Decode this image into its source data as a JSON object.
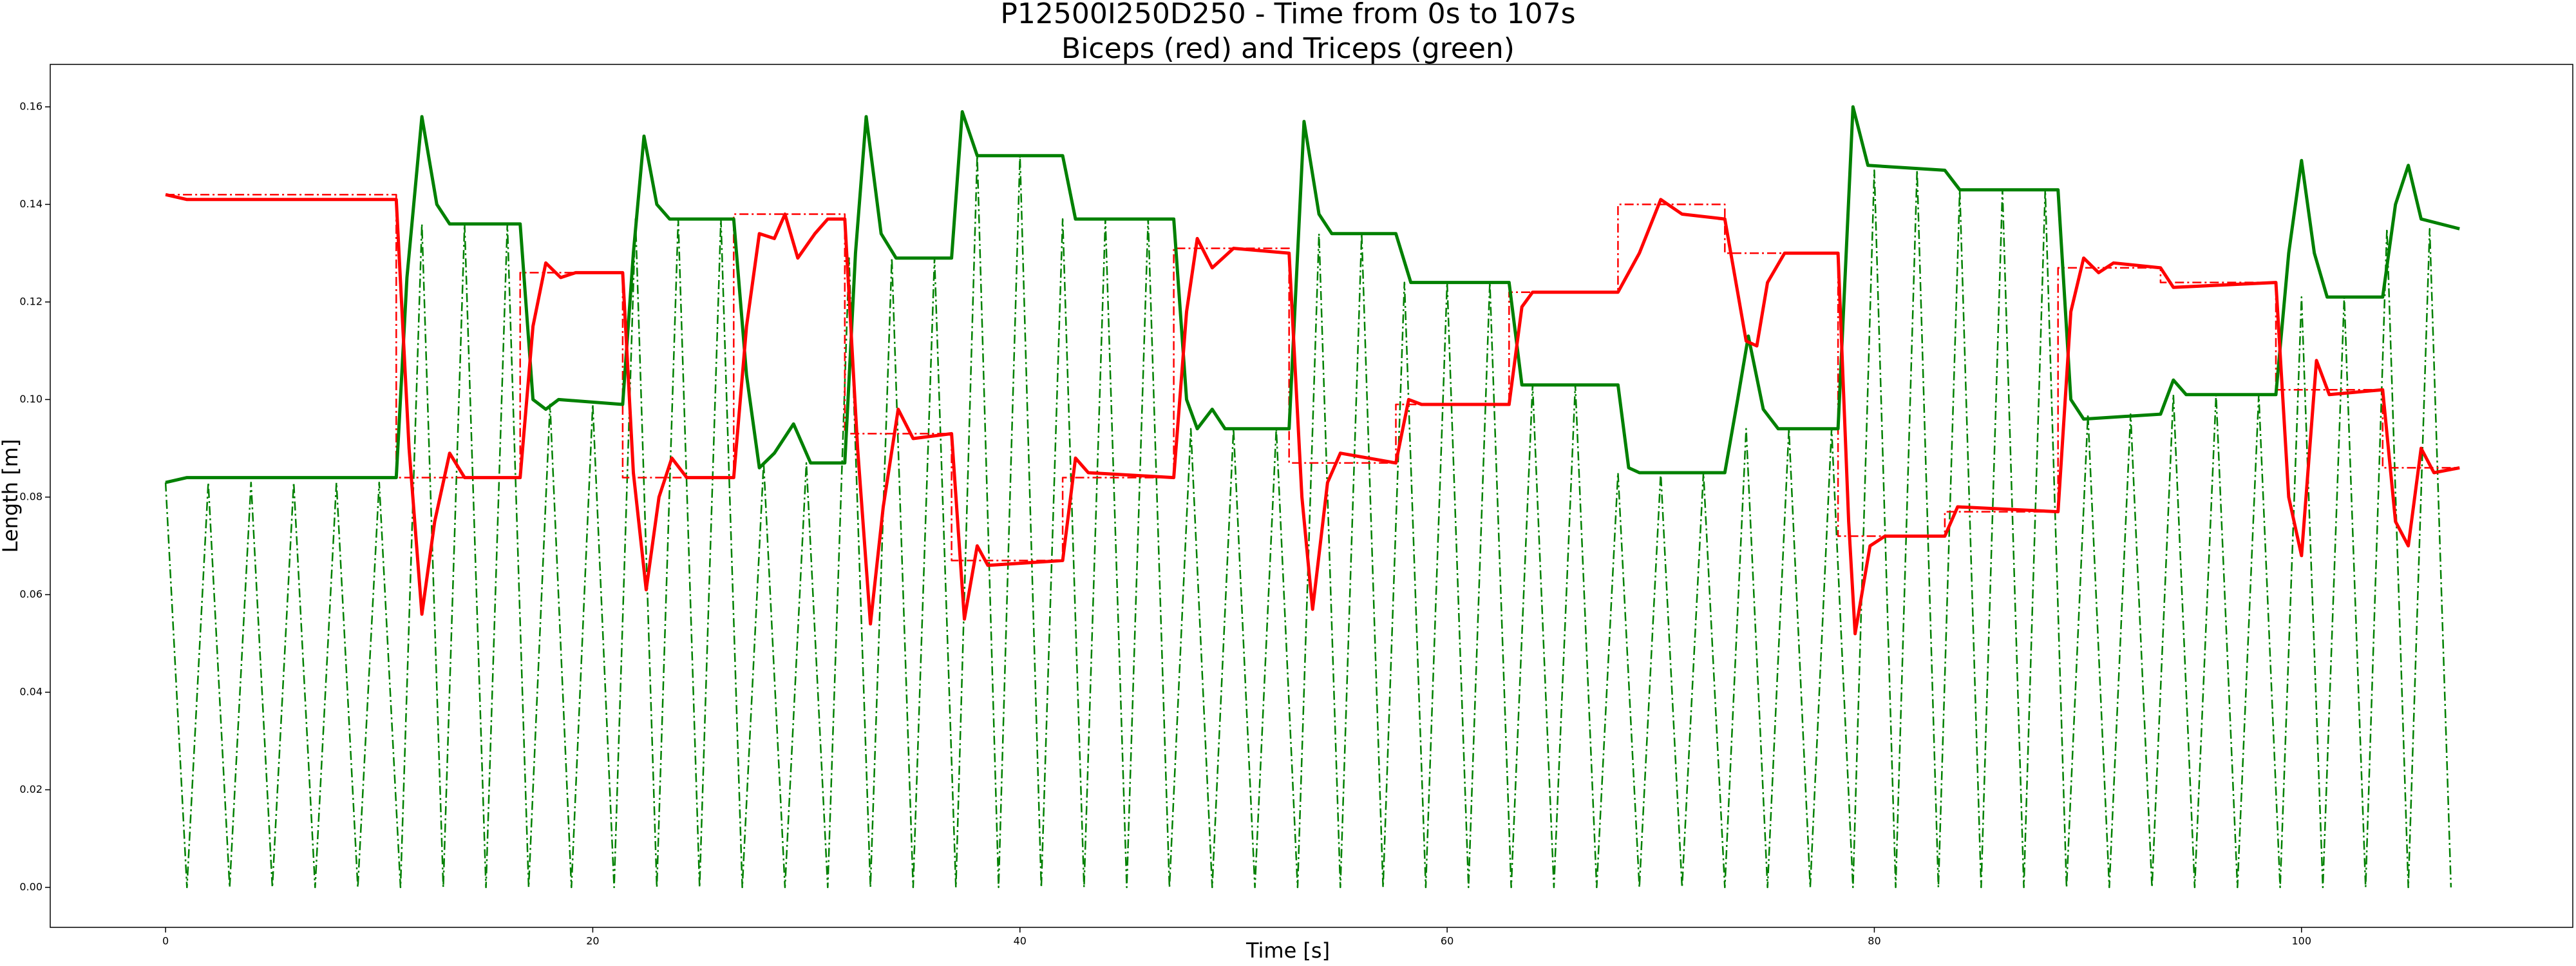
{
  "chart_data": {
    "type": "line",
    "title": "P12500I250D250 - Time from 0s to 107s",
    "subtitle": "Biceps (red) and Triceps (green)",
    "x_label": "Time [s]",
    "y_label": "Length [m]",
    "xlim": [
      -5.4,
      112.7
    ],
    "ylim": [
      -0.0082,
      0.1687
    ],
    "xticks": [
      0,
      20,
      40,
      60,
      80,
      100
    ],
    "yticks": [
      {
        "value": 0,
        "label": "0.00"
      },
      {
        "value": 0.02,
        "label": "0.02"
      },
      {
        "value": 0.04,
        "label": "0.04"
      },
      {
        "value": 0.06,
        "label": "0.06"
      },
      {
        "value": 0.08,
        "label": "0.08"
      },
      {
        "value": 0.1,
        "label": "0.10"
      },
      {
        "value": 0.12,
        "label": "0.12"
      },
      {
        "value": 0.14,
        "label": "0.14"
      },
      {
        "value": 0.16,
        "label": "0.16"
      }
    ],
    "grid": false,
    "series": [
      {
        "color": "#008000",
        "style": "dashdot",
        "width": 2.5,
        "x": [
          0,
          1,
          2,
          3,
          4,
          5,
          6,
          7,
          8,
          9,
          10,
          11,
          12,
          13,
          14,
          15,
          16,
          17,
          18,
          19,
          20,
          21,
          22,
          23,
          24,
          25,
          26,
          27,
          28,
          29,
          30,
          31,
          32,
          33,
          34,
          35,
          36,
          37,
          38,
          39,
          40,
          41,
          42,
          43,
          44,
          45,
          46,
          47,
          48,
          49,
          50,
          51,
          52,
          53,
          54,
          55,
          56,
          57,
          58,
          59,
          60,
          61,
          62,
          63,
          64,
          65,
          66,
          67,
          68,
          69,
          70,
          71,
          72,
          73,
          74,
          75,
          76,
          77,
          78,
          79,
          80,
          81,
          82,
          83,
          84,
          85,
          86,
          87,
          88,
          89,
          90,
          91,
          92,
          93,
          94,
          95,
          96,
          97,
          98,
          99,
          100,
          101,
          102,
          103,
          104,
          105,
          106,
          107
        ],
        "values": [
          0.083,
          0,
          0.083,
          0,
          0.083,
          0,
          0.083,
          0,
          0.083,
          0,
          0.083,
          0,
          0.136,
          0,
          0.136,
          0,
          0.136,
          0,
          0.099,
          0,
          0.099,
          0,
          0.137,
          0,
          0.137,
          0,
          0.137,
          0,
          0.087,
          0,
          0.087,
          0,
          0.129,
          0,
          0.129,
          0,
          0.129,
          0,
          0.15,
          0,
          0.15,
          0,
          0.137,
          0,
          0.137,
          0,
          0.137,
          0,
          0.094,
          0,
          0.094,
          0,
          0.094,
          0,
          0.134,
          0,
          0.134,
          0,
          0.124,
          0,
          0.124,
          0,
          0.124,
          0,
          0.103,
          0,
          0.103,
          0,
          0.085,
          0,
          0.085,
          0,
          0.085,
          0,
          0.094,
          0,
          0.094,
          0,
          0.094,
          0,
          0.147,
          0,
          0.147,
          0,
          0.143,
          0,
          0.143,
          0,
          0.143,
          0,
          0.097,
          0,
          0.097,
          0,
          0.101,
          0,
          0.101,
          0,
          0.101,
          0,
          0.121,
          0,
          0.121,
          0,
          0.135,
          0,
          0.135,
          0
        ]
      },
      {
        "color": "#ff0000",
        "style": "dashdot",
        "width": 2.5,
        "x": [
          0,
          10.8,
          10.8,
          16.6,
          16.6,
          21.4,
          21.4,
          26.6,
          26.6,
          31.8,
          31.8,
          36.8,
          36.8,
          42,
          42,
          47.2,
          47.2,
          52.6,
          52.6,
          57.6,
          57.6,
          62.9,
          62.9,
          68,
          68,
          73,
          73,
          78.3,
          78.3,
          83.3,
          83.3,
          88.6,
          88.6,
          93.4,
          93.4,
          98.8,
          98.8,
          103.8,
          103.8,
          107.4
        ],
        "values": [
          0.142,
          0.142,
          0.084,
          0.084,
          0.126,
          0.126,
          0.084,
          0.084,
          0.138,
          0.138,
          0.093,
          0.093,
          0.067,
          0.067,
          0.084,
          0.084,
          0.131,
          0.131,
          0.087,
          0.087,
          0.099,
          0.099,
          0.122,
          0.122,
          0.14,
          0.14,
          0.13,
          0.13,
          0.072,
          0.072,
          0.077,
          0.077,
          0.127,
          0.127,
          0.124,
          0.124,
          0.102,
          0.102,
          0.086,
          0.086
        ]
      },
      {
        "color": "#008000",
        "style": "solid",
        "width": 5,
        "x": [
          0,
          1,
          10.8,
          11.3,
          12,
          12.7,
          13.3,
          16.6,
          17.2,
          17.8,
          18.4,
          21.4,
          21.9,
          22.4,
          23,
          23.6,
          26.6,
          27.2,
          27.8,
          28.5,
          29.4,
          30.2,
          31.8,
          32.3,
          32.8,
          33.5,
          34.2,
          36.8,
          37.3,
          38,
          42,
          42.6,
          47.2,
          47.8,
          48.3,
          49,
          49.6,
          52.6,
          53.3,
          54,
          54.6,
          57.6,
          58.3,
          62.9,
          63.5,
          68,
          68.5,
          69,
          73,
          73.6,
          74.1,
          74.8,
          75.5,
          78.3,
          79,
          79.7,
          83.3,
          84,
          88.6,
          89.2,
          89.8,
          93.4,
          94,
          94.6,
          98.8,
          99.4,
          100,
          100.6,
          101.2,
          103.8,
          104.4,
          105,
          105.6,
          107.4
        ],
        "values": [
          0.083,
          0.084,
          0.084,
          0.125,
          0.158,
          0.14,
          0.136,
          0.136,
          0.1,
          0.098,
          0.1,
          0.099,
          0.13,
          0.154,
          0.14,
          0.137,
          0.137,
          0.105,
          0.086,
          0.089,
          0.095,
          0.087,
          0.087,
          0.13,
          0.158,
          0.134,
          0.129,
          0.129,
          0.159,
          0.15,
          0.15,
          0.137,
          0.137,
          0.1,
          0.094,
          0.098,
          0.094,
          0.094,
          0.157,
          0.138,
          0.134,
          0.134,
          0.124,
          0.124,
          0.103,
          0.103,
          0.086,
          0.085,
          0.085,
          0.1,
          0.113,
          0.098,
          0.094,
          0.094,
          0.16,
          0.148,
          0.147,
          0.143,
          0.143,
          0.1,
          0.096,
          0.097,
          0.104,
          0.101,
          0.101,
          0.13,
          0.149,
          0.13,
          0.121,
          0.121,
          0.14,
          0.148,
          0.137,
          0.135
        ]
      },
      {
        "color": "#ff0000",
        "style": "solid",
        "width": 5,
        "x": [
          0,
          1,
          10.8,
          11.4,
          12,
          12.6,
          13.3,
          14,
          16.6,
          17.2,
          17.8,
          18.5,
          19.2,
          21.4,
          21.9,
          22.5,
          23.1,
          23.7,
          24.4,
          26.6,
          27.2,
          27.8,
          28.5,
          29,
          29.6,
          30.4,
          31,
          31.8,
          32.4,
          33,
          33.6,
          34.3,
          35,
          36.8,
          37.4,
          38,
          38.5,
          42,
          42.6,
          43.2,
          47.2,
          47.8,
          48.3,
          49,
          50,
          52.6,
          53.2,
          53.7,
          54.4,
          55,
          57.6,
          58.2,
          58.8,
          62.9,
          63.5,
          64,
          68,
          69,
          70,
          71,
          73,
          73.6,
          74,
          74.5,
          75,
          75.8,
          78.3,
          78.8,
          79.1,
          79.8,
          80.5,
          83.3,
          83.9,
          88.6,
          89.2,
          89.8,
          90.5,
          91.2,
          93.4,
          94,
          98.8,
          99.4,
          100,
          100.7,
          101.3,
          103.8,
          104.4,
          105,
          105.6,
          106.2,
          107.4
        ],
        "values": [
          0.142,
          0.141,
          0.141,
          0.09,
          0.056,
          0.075,
          0.089,
          0.084,
          0.084,
          0.115,
          0.128,
          0.125,
          0.126,
          0.126,
          0.085,
          0.061,
          0.08,
          0.088,
          0.084,
          0.084,
          0.115,
          0.134,
          0.133,
          0.138,
          0.129,
          0.134,
          0.137,
          0.137,
          0.09,
          0.054,
          0.078,
          0.098,
          0.092,
          0.093,
          0.055,
          0.07,
          0.066,
          0.067,
          0.088,
          0.085,
          0.084,
          0.118,
          0.133,
          0.127,
          0.131,
          0.13,
          0.08,
          0.057,
          0.083,
          0.089,
          0.087,
          0.1,
          0.099,
          0.099,
          0.119,
          0.122,
          0.122,
          0.13,
          0.141,
          0.138,
          0.137,
          0.122,
          0.112,
          0.111,
          0.124,
          0.13,
          0.13,
          0.075,
          0.052,
          0.07,
          0.072,
          0.072,
          0.078,
          0.077,
          0.118,
          0.129,
          0.126,
          0.128,
          0.127,
          0.123,
          0.124,
          0.08,
          0.068,
          0.108,
          0.101,
          0.102,
          0.075,
          0.07,
          0.09,
          0.085,
          0.086
        ]
      }
    ]
  }
}
